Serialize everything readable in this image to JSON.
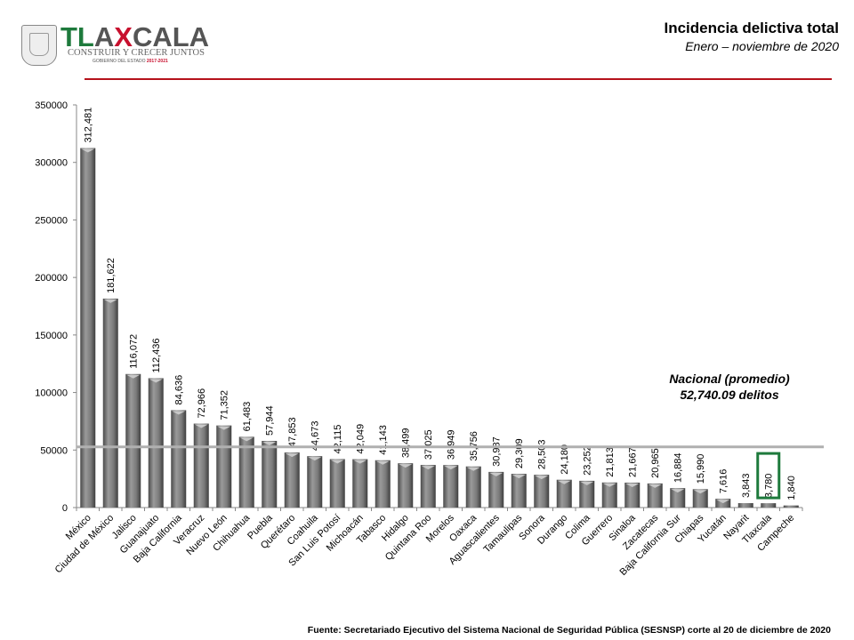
{
  "header": {
    "logo_text": "TLAXCALA",
    "logo_slogan": "CONSTRUIR Y CRECER JUNTOS",
    "logo_gov": "GOBIERNO DEL ESTADO",
    "logo_years": "2017-2021",
    "title": "Incidencia delictiva total",
    "subtitle": "Enero – noviembre de 2020"
  },
  "chart_data": {
    "type": "bar",
    "title": "Incidencia delictiva total",
    "subtitle": "Enero – noviembre de 2020",
    "xlabel": "",
    "ylabel": "",
    "ylim": [
      0,
      350000
    ],
    "yticks": [
      0,
      50000,
      100000,
      150000,
      200000,
      250000,
      300000,
      350000
    ],
    "categories": [
      "México",
      "Ciudad de México",
      "Jalisco",
      "Guanajuato",
      "Baja California",
      "Veracruz",
      "Nuevo León",
      "Chihuahua",
      "Puebla",
      "Querétaro",
      "Coahuila",
      "San Luis Potosí",
      "Michoacán",
      "Tabasco",
      "Hidalgo",
      "Quintana Roo",
      "Morelos",
      "Oaxaca",
      "Aguascalientes",
      "Tamaulipas",
      "Sonora",
      "Durango",
      "Colima",
      "Guerrero",
      "Sinaloa",
      "Zacatecas",
      "Baja California Sur",
      "Chiapas",
      "Yucatán",
      "Nayarit",
      "Tlaxcala",
      "Campeche"
    ],
    "values": [
      312481,
      181622,
      116072,
      112436,
      84636,
      72966,
      71352,
      61483,
      57944,
      47853,
      44673,
      42115,
      42049,
      41143,
      38499,
      37025,
      36949,
      35756,
      30987,
      29309,
      28503,
      24180,
      23252,
      21813,
      21667,
      20965,
      16884,
      15990,
      7616,
      3843,
      3780,
      1840
    ],
    "data_labels": [
      "312,481",
      "181,622",
      "116,072",
      "112,436",
      "84,636",
      "72,966",
      "71,352",
      "61,483",
      "57,944",
      "47,853",
      "44,673",
      "42,115",
      "42,049",
      "41,143",
      "38,499",
      "37,025",
      "36,949",
      "35,756",
      "30,987",
      "29,309",
      "28,503",
      "24,180",
      "23,252",
      "21,813",
      "21,667",
      "20,965",
      "16,884",
      "15,990",
      "7,616",
      "3,843",
      "3,780",
      "1,840"
    ],
    "highlight": "Tlaxcala",
    "highlight_color": "#1e7a3c",
    "bar_color": "#7a7a7a",
    "reference_line": {
      "value": 52740.09,
      "color": "#b0b0b0"
    },
    "annotation": [
      "Nacional (promedio)",
      "52,740.09 delitos"
    ],
    "grid": false,
    "legend": "none"
  },
  "footer": {
    "source": "Fuente: Secretariado Ejecutivo del Sistema Nacional de Seguridad Pública (SESNSP) corte al 20 de diciembre de 2020"
  }
}
